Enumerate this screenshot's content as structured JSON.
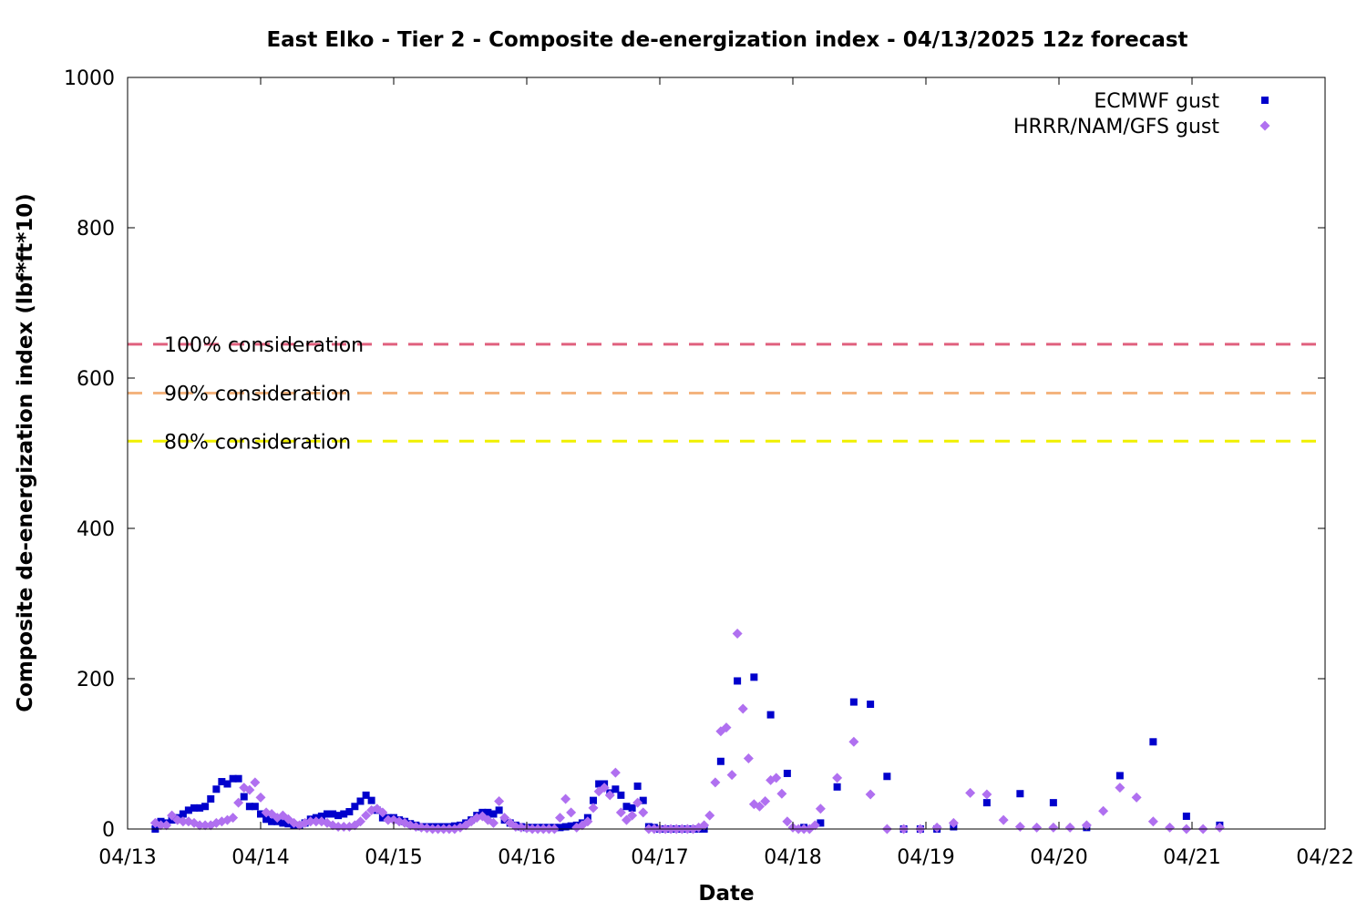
{
  "chart_data": {
    "type": "scatter",
    "title": "East Elko - Tier 2 - Composite de-energization index - 04/13/2025 12z forecast",
    "xlabel": "Date",
    "ylabel": "Composite de-energization index (lbf*ft*10)",
    "x_ticks": [
      "04/13",
      "04/14",
      "04/15",
      "04/16",
      "04/17",
      "04/18",
      "04/19",
      "04/20",
      "04/21",
      "04/22"
    ],
    "xlim": [
      "04/13 00z",
      "04/22 00z"
    ],
    "ylim": [
      0,
      1000
    ],
    "y_ticks": [
      0,
      200,
      400,
      600,
      800,
      1000
    ],
    "grid": false,
    "legend_position": "top-right",
    "thresholds": [
      {
        "label": "100% consideration",
        "value": 645,
        "color": "#e0607e"
      },
      {
        "label": "90% consideration",
        "value": 580,
        "color": "#f4b47e"
      },
      {
        "label": "80% consideration",
        "value": 516,
        "color": "#f0f000"
      }
    ],
    "series": [
      {
        "name": "ECMWF gust",
        "marker": "square",
        "color": "#0000cc",
        "x_unit": "day of April 2025 (fractional)",
        "points": [
          [
            13.208,
            0
          ],
          [
            13.25,
            10
          ],
          [
            13.292,
            8
          ],
          [
            13.333,
            12
          ],
          [
            13.375,
            15
          ],
          [
            13.417,
            20
          ],
          [
            13.458,
            25
          ],
          [
            13.5,
            28
          ],
          [
            13.542,
            28
          ],
          [
            13.583,
            30
          ],
          [
            13.625,
            40
          ],
          [
            13.667,
            53
          ],
          [
            13.708,
            63
          ],
          [
            13.75,
            60
          ],
          [
            13.792,
            67
          ],
          [
            13.833,
            67
          ],
          [
            13.875,
            43
          ],
          [
            13.917,
            30
          ],
          [
            13.958,
            30
          ],
          [
            14.0,
            20
          ],
          [
            14.042,
            13
          ],
          [
            14.083,
            10
          ],
          [
            14.125,
            10
          ],
          [
            14.167,
            8
          ],
          [
            14.208,
            7
          ],
          [
            14.25,
            5
          ],
          [
            14.292,
            5
          ],
          [
            14.333,
            8
          ],
          [
            14.375,
            13
          ],
          [
            14.417,
            15
          ],
          [
            14.458,
            17
          ],
          [
            14.5,
            20
          ],
          [
            14.542,
            20
          ],
          [
            14.583,
            18
          ],
          [
            14.625,
            20
          ],
          [
            14.667,
            23
          ],
          [
            14.708,
            30
          ],
          [
            14.75,
            37
          ],
          [
            14.792,
            45
          ],
          [
            14.833,
            38
          ],
          [
            14.875,
            25
          ],
          [
            14.917,
            15
          ],
          [
            14.958,
            15
          ],
          [
            15.0,
            15
          ],
          [
            15.042,
            12
          ],
          [
            15.083,
            10
          ],
          [
            15.125,
            7
          ],
          [
            15.167,
            5
          ],
          [
            15.208,
            3
          ],
          [
            15.25,
            3
          ],
          [
            15.292,
            3
          ],
          [
            15.333,
            3
          ],
          [
            15.375,
            3
          ],
          [
            15.417,
            3
          ],
          [
            15.458,
            4
          ],
          [
            15.5,
            5
          ],
          [
            15.542,
            8
          ],
          [
            15.583,
            12
          ],
          [
            15.625,
            18
          ],
          [
            15.667,
            22
          ],
          [
            15.708,
            22
          ],
          [
            15.75,
            20
          ],
          [
            15.792,
            25
          ],
          [
            15.833,
            12
          ],
          [
            15.875,
            8
          ],
          [
            15.917,
            5
          ],
          [
            15.958,
            3
          ],
          [
            16.0,
            2
          ],
          [
            16.042,
            2
          ],
          [
            16.083,
            2
          ],
          [
            16.125,
            2
          ],
          [
            16.167,
            2
          ],
          [
            16.208,
            2
          ],
          [
            16.25,
            2
          ],
          [
            16.292,
            3
          ],
          [
            16.333,
            4
          ],
          [
            16.375,
            5
          ],
          [
            16.417,
            8
          ],
          [
            16.458,
            15
          ],
          [
            16.5,
            38
          ],
          [
            16.542,
            60
          ],
          [
            16.583,
            60
          ],
          [
            16.625,
            48
          ],
          [
            16.667,
            53
          ],
          [
            16.708,
            45
          ],
          [
            16.75,
            30
          ],
          [
            16.792,
            28
          ],
          [
            16.833,
            57
          ],
          [
            16.875,
            38
          ],
          [
            16.917,
            3
          ],
          [
            16.958,
            2
          ],
          [
            17.0,
            0
          ],
          [
            17.042,
            0
          ],
          [
            17.083,
            0
          ],
          [
            17.125,
            0
          ],
          [
            17.167,
            0
          ],
          [
            17.208,
            0
          ],
          [
            17.25,
            0
          ],
          [
            17.292,
            0
          ],
          [
            17.333,
            0
          ],
          [
            17.458,
            90
          ],
          [
            17.583,
            197
          ],
          [
            17.708,
            202
          ],
          [
            17.833,
            152
          ],
          [
            17.958,
            74
          ],
          [
            18.083,
            2
          ],
          [
            18.208,
            8
          ],
          [
            18.333,
            56
          ],
          [
            18.458,
            169
          ],
          [
            18.583,
            166
          ],
          [
            18.708,
            70
          ],
          [
            18.833,
            0
          ],
          [
            18.958,
            0
          ],
          [
            19.083,
            0
          ],
          [
            19.208,
            3
          ],
          [
            19.458,
            35
          ],
          [
            19.708,
            47
          ],
          [
            19.958,
            35
          ],
          [
            20.208,
            2
          ],
          [
            20.458,
            71
          ],
          [
            20.708,
            116
          ],
          [
            20.958,
            17
          ],
          [
            21.208,
            5
          ]
        ]
      },
      {
        "name": "HRRR/NAM/GFS gust",
        "marker": "diamond",
        "color": "#b070f0",
        "x_unit": "day of April 2025 (fractional)",
        "points": [
          [
            13.208,
            8
          ],
          [
            13.25,
            5
          ],
          [
            13.292,
            5
          ],
          [
            13.333,
            18
          ],
          [
            13.375,
            12
          ],
          [
            13.417,
            10
          ],
          [
            13.458,
            10
          ],
          [
            13.5,
            8
          ],
          [
            13.542,
            5
          ],
          [
            13.583,
            5
          ],
          [
            13.625,
            5
          ],
          [
            13.667,
            8
          ],
          [
            13.708,
            10
          ],
          [
            13.75,
            12
          ],
          [
            13.792,
            15
          ],
          [
            13.833,
            35
          ],
          [
            13.875,
            55
          ],
          [
            13.917,
            52
          ],
          [
            13.958,
            62
          ],
          [
            14.0,
            42
          ],
          [
            14.042,
            22
          ],
          [
            14.083,
            20
          ],
          [
            14.125,
            15
          ],
          [
            14.167,
            18
          ],
          [
            14.208,
            13
          ],
          [
            14.25,
            8
          ],
          [
            14.292,
            5
          ],
          [
            14.333,
            8
          ],
          [
            14.375,
            10
          ],
          [
            14.417,
            10
          ],
          [
            14.458,
            10
          ],
          [
            14.5,
            8
          ],
          [
            14.542,
            5
          ],
          [
            14.583,
            3
          ],
          [
            14.625,
            3
          ],
          [
            14.667,
            3
          ],
          [
            14.708,
            5
          ],
          [
            14.75,
            10
          ],
          [
            14.792,
            18
          ],
          [
            14.833,
            25
          ],
          [
            14.875,
            27
          ],
          [
            14.917,
            22
          ],
          [
            14.958,
            12
          ],
          [
            15.0,
            12
          ],
          [
            15.042,
            10
          ],
          [
            15.083,
            8
          ],
          [
            15.125,
            5
          ],
          [
            15.167,
            3
          ],
          [
            15.208,
            2
          ],
          [
            15.25,
            1
          ],
          [
            15.292,
            0
          ],
          [
            15.333,
            0
          ],
          [
            15.375,
            0
          ],
          [
            15.417,
            0
          ],
          [
            15.458,
            0
          ],
          [
            15.5,
            2
          ],
          [
            15.542,
            5
          ],
          [
            15.583,
            10
          ],
          [
            15.625,
            15
          ],
          [
            15.667,
            17
          ],
          [
            15.708,
            12
          ],
          [
            15.75,
            8
          ],
          [
            15.792,
            37
          ],
          [
            15.833,
            15
          ],
          [
            15.875,
            8
          ],
          [
            15.917,
            3
          ],
          [
            15.958,
            2
          ],
          [
            16.0,
            1
          ],
          [
            16.042,
            0
          ],
          [
            16.083,
            0
          ],
          [
            16.125,
            0
          ],
          [
            16.167,
            0
          ],
          [
            16.208,
            0
          ],
          [
            16.25,
            15
          ],
          [
            16.292,
            40
          ],
          [
            16.333,
            22
          ],
          [
            16.375,
            2
          ],
          [
            16.417,
            5
          ],
          [
            16.458,
            10
          ],
          [
            16.5,
            28
          ],
          [
            16.542,
            50
          ],
          [
            16.583,
            55
          ],
          [
            16.625,
            45
          ],
          [
            16.667,
            75
          ],
          [
            16.708,
            22
          ],
          [
            16.75,
            12
          ],
          [
            16.792,
            18
          ],
          [
            16.833,
            35
          ],
          [
            16.875,
            22
          ],
          [
            16.917,
            0
          ],
          [
            16.958,
            0
          ],
          [
            17.0,
            0
          ],
          [
            17.042,
            0
          ],
          [
            17.083,
            0
          ],
          [
            17.125,
            0
          ],
          [
            17.167,
            0
          ],
          [
            17.208,
            0
          ],
          [
            17.25,
            0
          ],
          [
            17.292,
            2
          ],
          [
            17.333,
            5
          ],
          [
            17.375,
            18
          ],
          [
            17.417,
            62
          ],
          [
            17.458,
            130
          ],
          [
            17.5,
            135
          ],
          [
            17.542,
            72
          ],
          [
            17.583,
            260
          ],
          [
            17.625,
            160
          ],
          [
            17.667,
            94
          ],
          [
            17.708,
            33
          ],
          [
            17.75,
            30
          ],
          [
            17.792,
            37
          ],
          [
            17.833,
            65
          ],
          [
            17.875,
            68
          ],
          [
            17.917,
            47
          ],
          [
            17.958,
            10
          ],
          [
            18.0,
            2
          ],
          [
            18.042,
            0
          ],
          [
            18.083,
            0
          ],
          [
            18.125,
            0
          ],
          [
            18.167,
            5
          ],
          [
            18.208,
            27
          ],
          [
            18.333,
            68
          ],
          [
            18.458,
            116
          ],
          [
            18.583,
            46
          ],
          [
            18.708,
            0
          ],
          [
            18.833,
            0
          ],
          [
            18.958,
            0
          ],
          [
            19.083,
            2
          ],
          [
            19.208,
            8
          ],
          [
            19.333,
            48
          ],
          [
            19.458,
            46
          ],
          [
            19.583,
            12
          ],
          [
            19.708,
            3
          ],
          [
            19.833,
            2
          ],
          [
            19.958,
            2
          ],
          [
            20.083,
            2
          ],
          [
            20.208,
            5
          ],
          [
            20.333,
            24
          ],
          [
            20.458,
            55
          ],
          [
            20.583,
            42
          ],
          [
            20.708,
            10
          ],
          [
            20.833,
            2
          ],
          [
            20.958,
            0
          ],
          [
            21.083,
            0
          ],
          [
            21.208,
            2
          ]
        ]
      }
    ]
  }
}
